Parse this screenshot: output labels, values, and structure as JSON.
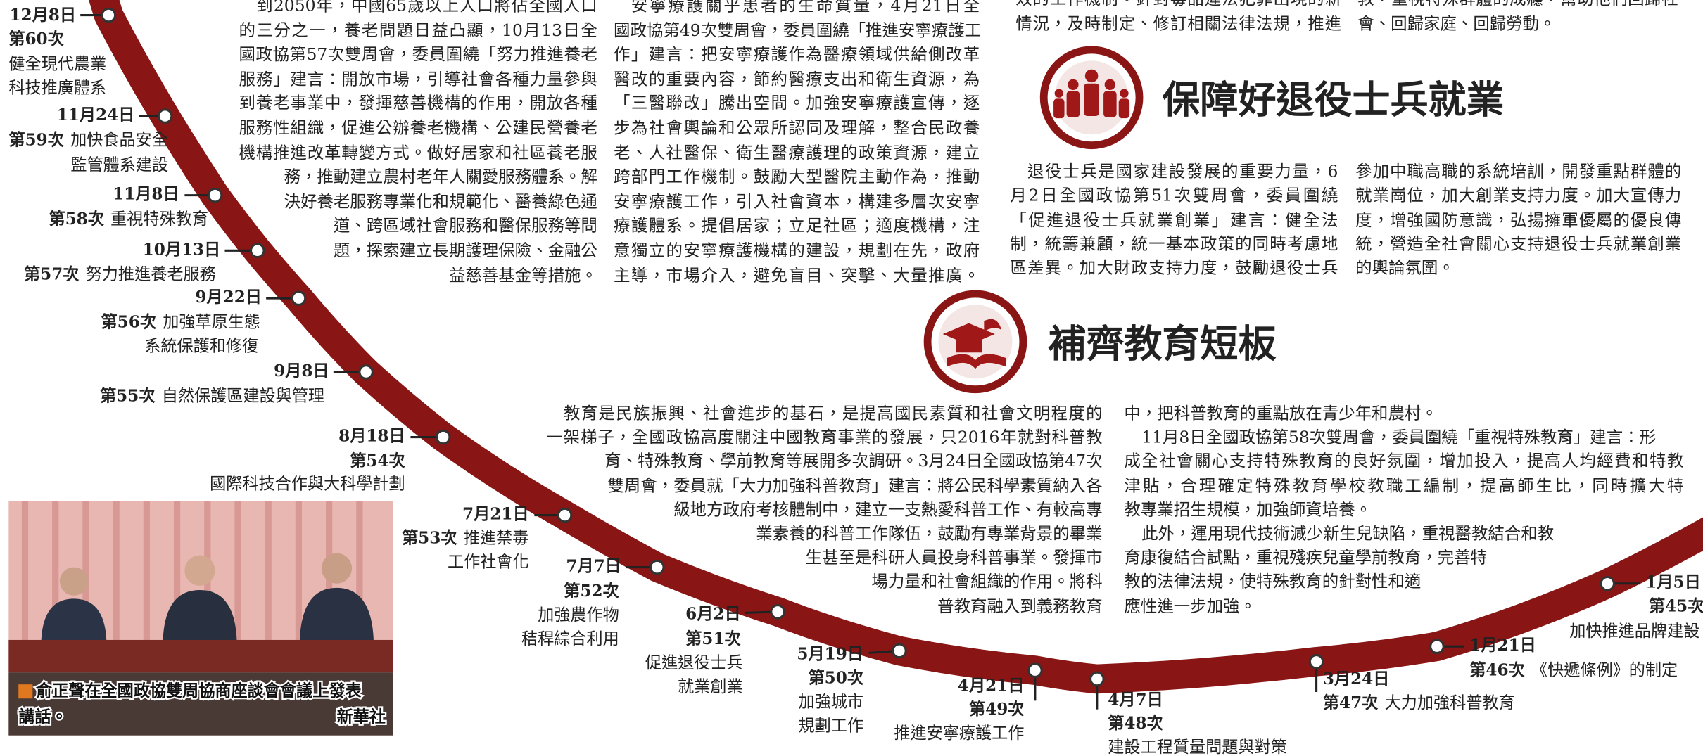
{
  "articles": [
    {
      "lines": [
        "到2050年，中國65歲以上人口將佔全國人口",
        "的三分之一，養老問題日益凸顯，10月13日全",
        "國政協第57次雙周會，委員圍繞「努力推進養老",
        "服務」建言：開放市場，引導社會各種力量參與",
        "到養老事業中，發揮慈善機構的作用，開放各種",
        "服務性組織，促進公辦養老機構、公建民營養老",
        "機構推進改革轉變方式。做好居家和社區養老服",
        "務，推動建立農村老年人關愛服務體系。解",
        "決好養老服務專業化和規範化、醫養綠色通",
        "道、跨區域社會服務和醫保服務等問",
        "題，探索建立長期護理保險、金融公",
        "益慈善基金等措施。"
      ]
    },
    {
      "lines": [
        "安寧療護關乎患者的生命質量，4月21日全",
        "國政協第49次雙周會，委員圍繞「推進安寧療護工",
        "作」建言：把安寧療護作為醫療領域供給側改革",
        "醫改的重要內容，節約醫療支出和衛生資源，為",
        "「三醫聯改」騰出空間。加強安寧療護宣傳，逐",
        "步為社會輿論和公眾所認同及理解，整合民政養",
        "老、人社醫保、衛生醫療護理的政策資源，建立",
        "跨部門工作機制。鼓勵大型醫院主動作為，推動",
        "安寧療護工作，引入社會資本，構建多層次安寧",
        "療護體系。提倡居家；立足社區；適度機構，注",
        "意獨立的安寧療護機構的建設，規劃在先，政府",
        "主導，市場介入，避免盲目、突擊、大量推廣。"
      ]
    },
    {
      "lines": [
        "效的工作機制。針對毒品違法犯罪出現的新",
        "情況，及時制定、修訂相關法律法規，推進"
      ]
    },
    {
      "lines": [
        "教，重視特殊群體的成癮，幫助他們回歸社",
        "會、回歸家庭、回歸勞動。"
      ]
    },
    {
      "lines": [
        "退役士兵是國家建設發展的重要力量，6",
        "月2日全國政協第51次雙周會，委員圍繞",
        "「促進退役士兵就業創業」建言：健全法",
        "制，統籌兼顧，統一基本政策的同時考慮地",
        "區差異。加大財政支持力度，鼓勵退役士兵"
      ]
    },
    {
      "lines": [
        "參加中職高職的系統培訓，開發重點群體的",
        "就業崗位，加大創業支持力度。加大宣傳力",
        "度，增強國防意識，弘揚擁軍優屬的優良傳",
        "統，營造全社會關心支持退役士兵就業創業",
        "的輿論氛圍。"
      ]
    },
    {
      "lines": [
        "教育是民族振興、社會進步的基石，是提高國民素質和社會文明程度的",
        "一架梯子，全國政協高度關注中國教育事業的發展，只2016年就對科普教",
        "育、特殊教育、學前教育等展開多次調研。3月24日全國政協第47次",
        "雙周會，委員就「大力加強科普教育」建言：將公民科學素質納入各",
        "級地方政府考核體制中，建立一支熱愛科普工作、有較高專",
        "業素養的科普工作隊伍，鼓勵有專業背景的畢業",
        "生甚至是科研人員投身科普事業。發揮市",
        "場力量和社會組織的作用。將科",
        "普教育融入到義務教育"
      ]
    },
    {
      "lines": [
        "中，把科普教育的重點放在青少年和農村。",
        "11月8日全國政協第58次雙周會，委員圍繞「重視特殊教育」建言：形",
        "成全社會關心支持特殊教育的良好氛圍，增加投入，提高人均經費和特教",
        "津貼，合理確定特殊教育學校教職工編制，提高師生比，同時擴大特",
        "教專業招生規模，加強師資培養。",
        "此外，運用現代技術減少新生兒缺陷，重視醫教結合和教",
        "育康復結合試點，重視殘疾兒童學前教育，完善特",
        "教的法律法規，使特殊教育的針對性和適",
        "應性進一步加強。"
      ]
    }
  ],
  "sections": [
    {
      "heading": "保障好退役士兵就業"
    },
    {
      "heading": "補齊教育短板"
    }
  ],
  "timeline": [
    {
      "date": "12月8日",
      "session": "第60次",
      "topic": [
        "健全現代農業",
        "科技推廣體系"
      ]
    },
    {
      "date": "11月24日",
      "session": "第59次",
      "topic": [
        "加快食品安全",
        "監管體系建設"
      ]
    },
    {
      "date": "11月8日",
      "session": "第58次",
      "topic": [
        "重視特殊教育"
      ]
    },
    {
      "date": "10月13日",
      "session": "第57次",
      "topic": [
        "努力推進養老服務"
      ]
    },
    {
      "date": "9月22日",
      "session": "第56次",
      "topic": [
        "加強草原生態",
        "系統保護和修復"
      ]
    },
    {
      "date": "9月8日",
      "session": "第55次",
      "topic": [
        "自然保護區建設與管理"
      ]
    },
    {
      "date": "8月18日",
      "session": "第54次",
      "topic": [
        "國際科技合作與大科學計劃"
      ]
    },
    {
      "date": "7月21日",
      "session": "第53次",
      "topic": [
        "推進禁毒",
        "工作社會化"
      ]
    },
    {
      "date": "7月7日",
      "session": "第52次",
      "topic": [
        "加強農作物",
        "秸稈綜合利用"
      ]
    },
    {
      "date": "6月2日",
      "session": "第51次",
      "topic": [
        "促進退役士兵",
        "就業創業"
      ]
    },
    {
      "date": "5月19日",
      "session": "第50次",
      "topic": [
        "加強城市",
        "規劃工作"
      ]
    },
    {
      "date": "4月21日",
      "session": "第49次",
      "topic": [
        "推進安寧療護工作"
      ]
    },
    {
      "date": "4月7日",
      "session": "第48次",
      "topic": [
        "建設工程質量問題與對策"
      ]
    },
    {
      "date": "3月24日",
      "session": "第47次",
      "topic": [
        "大力加強科普教育"
      ]
    },
    {
      "date": "1月21日",
      "session": "第46次",
      "topic": [
        "《快遞條例》的制定"
      ]
    },
    {
      "date": "1月5日",
      "session": "第45次",
      "topic": [
        "加快推進品牌建設"
      ]
    }
  ],
  "photo": {
    "caption": [
      "俞正聲在全國政協雙周協商座談會會議上發表",
      "講話。"
    ],
    "credit": "新華社"
  }
}
